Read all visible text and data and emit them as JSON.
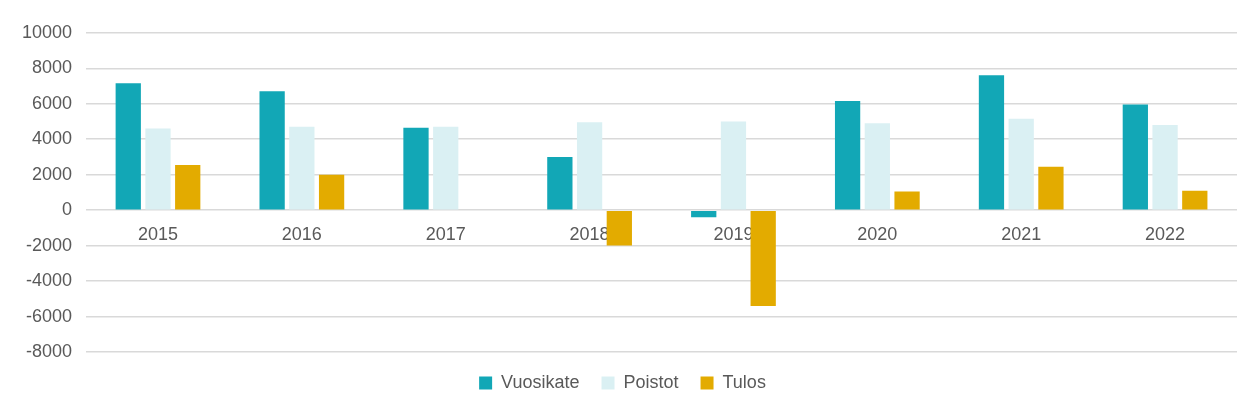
{
  "chart_data": {
    "type": "bar",
    "categories": [
      "2015",
      "2016",
      "2017",
      "2018",
      "2019",
      "2020",
      "2021",
      "2022"
    ],
    "series": [
      {
        "name": "Vuosikate",
        "color": "#12a7b6",
        "values": [
          7150,
          6700,
          4650,
          3000,
          -400,
          6150,
          7600,
          5950
        ]
      },
      {
        "name": "Poistot",
        "color": "#daf0f3",
        "values": [
          4600,
          4700,
          4700,
          4950,
          5000,
          4900,
          5150,
          4800
        ]
      },
      {
        "name": "Tulos",
        "color": "#e3ab00",
        "values": [
          2550,
          2000,
          0,
          -2000,
          -5400,
          1050,
          2450,
          1100
        ]
      }
    ],
    "ylim": [
      -8000,
      10000
    ],
    "yticks": [
      -8000,
      -6000,
      -4000,
      -2000,
      0,
      2000,
      4000,
      6000,
      8000,
      10000
    ],
    "grid": "y",
    "legend": "bottom"
  }
}
